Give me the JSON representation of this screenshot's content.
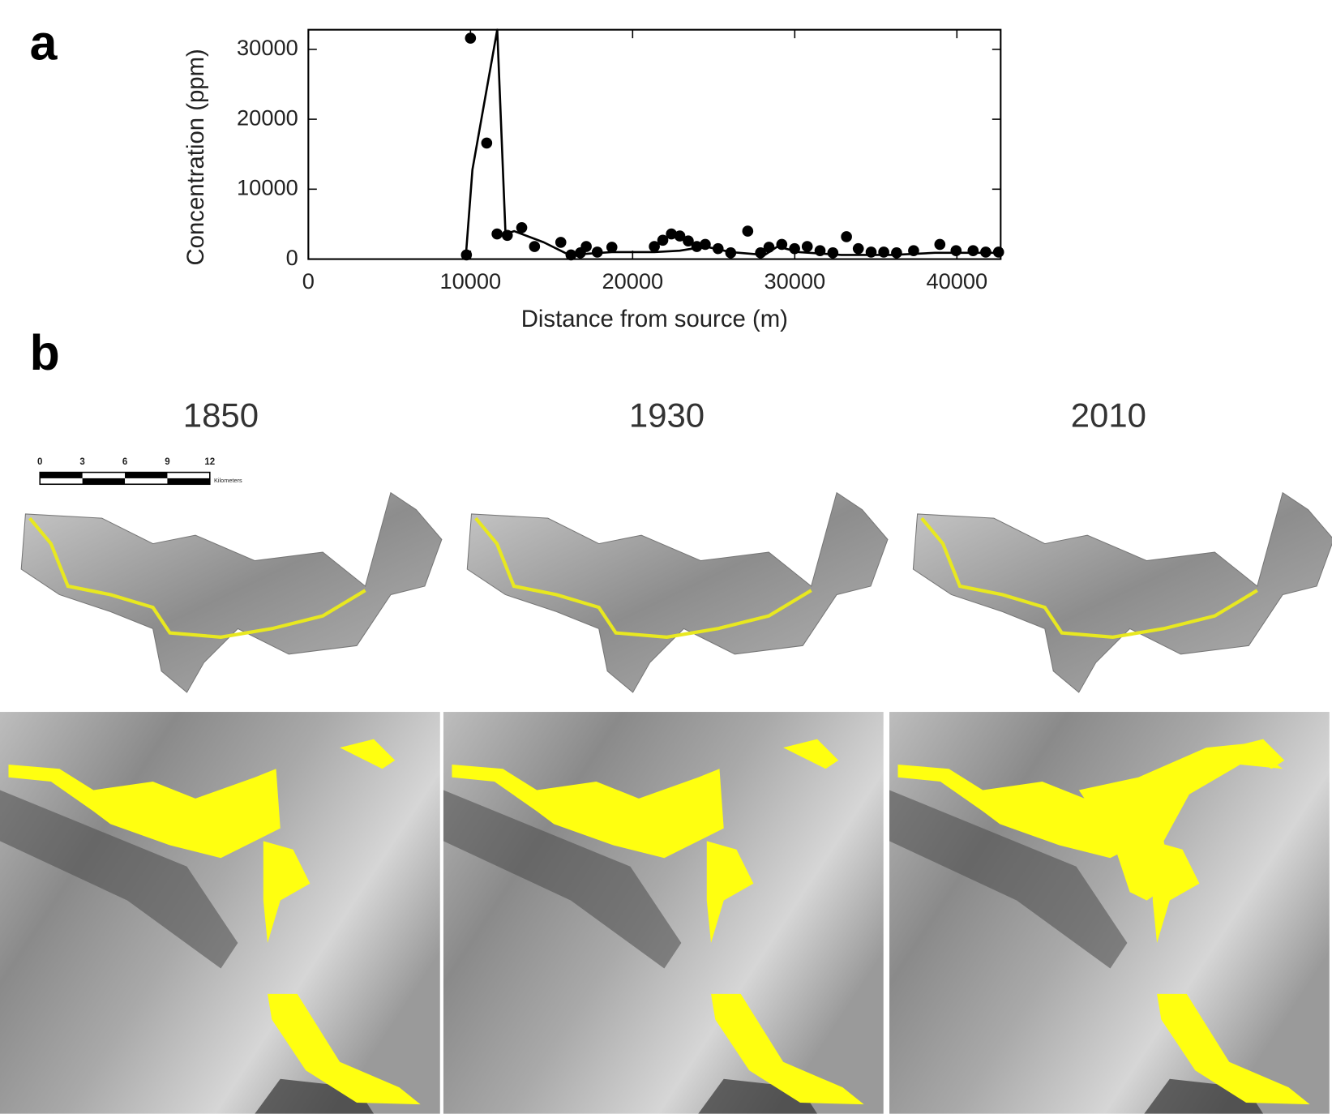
{
  "chart_data": {
    "type": "scatter",
    "panel_label": "a",
    "x_label": "Distance from source (m)",
    "y_label": "Concentration (ppm)",
    "xlim": [
      0,
      42700
    ],
    "ylim": [
      0,
      32800
    ],
    "xticks": [
      0,
      10000,
      20000,
      30000,
      40000
    ],
    "yticks": [
      0,
      10000,
      20000,
      30000
    ],
    "series": [
      {
        "type": "scatter",
        "color": "#000000",
        "x": [
          10000,
          9750,
          11000,
          11640,
          12270,
          13160,
          13950,
          15570,
          16200,
          16780,
          17140,
          17820,
          18720,
          21340,
          21860,
          22390,
          22910,
          23430,
          23960,
          24480,
          25270,
          26050,
          27100,
          27890,
          28410,
          29200,
          29990,
          30770,
          31560,
          32350,
          33190,
          33920,
          34710,
          35490,
          36280,
          37330,
          38950,
          39950,
          41000,
          41780,
          42570
        ],
        "values": [
          31600,
          600,
          16600,
          3600,
          3400,
          4500,
          1800,
          2400,
          600,
          900,
          1800,
          1000,
          1700,
          1800,
          2700,
          3600,
          3300,
          2600,
          1800,
          2100,
          1500,
          900,
          4000,
          900,
          1700,
          2100,
          1500,
          1800,
          1200,
          900,
          3200,
          1500,
          1000,
          1000,
          900,
          1200,
          2100,
          1200,
          1200,
          1000,
          1000
        ]
      },
      {
        "type": "line",
        "color": "#000000",
        "x": [
          9700,
          10120,
          11650,
          12160,
          12690,
          14520,
          16090,
          18720,
          21340,
          22910,
          24480,
          26050,
          28150,
          28940,
          30250,
          32870,
          36020,
          38640,
          42700
        ],
        "values": [
          0,
          12800,
          32800,
          3600,
          4000,
          2400,
          600,
          1000,
          1000,
          1200,
          1800,
          1000,
          600,
          1800,
          1000,
          600,
          600,
          900,
          900
        ]
      }
    ]
  },
  "panel_b": {
    "label": "b",
    "years": [
      "1850",
      "1930",
      "2010"
    ],
    "scale_bar": {
      "ticks": [
        "0",
        "3",
        "6",
        "9",
        "12"
      ],
      "unit": "Kilometers"
    }
  }
}
